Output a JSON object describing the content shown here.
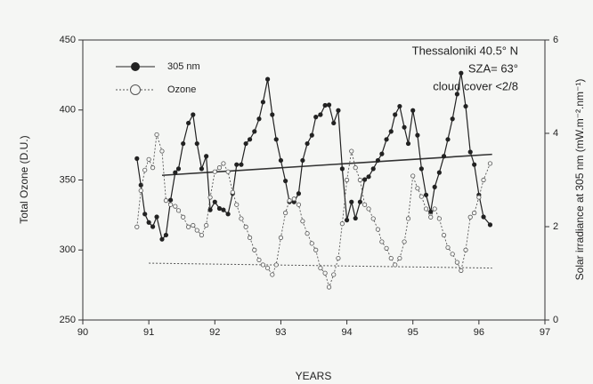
{
  "chart_data": {
    "type": "line",
    "annotations": [
      "Thessaloniki 40.5° N",
      "SZA= 63°",
      "cloud cover <2/8"
    ],
    "xlabel": "YEARS",
    "ylabel": "Total Ozone (D.U.)",
    "y2label": "Solar irradiance at 305 nm (mW.m⁻².nm⁻¹)",
    "xlim": [
      90,
      97
    ],
    "xticks": [
      90,
      91,
      92,
      93,
      94,
      95,
      96,
      97
    ],
    "ylim": [
      250,
      450
    ],
    "yticks": [
      250,
      300,
      350,
      400,
      450
    ],
    "y2lim": [
      0,
      6
    ],
    "y2ticks": [
      0,
      2,
      4,
      6
    ],
    "legend": "upper-left",
    "x": [
      90.82,
      90.88,
      90.94,
      91.0,
      91.06,
      91.12,
      91.2,
      91.26,
      91.33,
      91.4,
      91.45,
      91.52,
      91.6,
      91.67,
      91.73,
      91.8,
      91.87,
      91.93,
      92.0,
      92.07,
      92.13,
      92.2,
      92.27,
      92.33,
      92.4,
      92.47,
      92.53,
      92.6,
      92.67,
      92.73,
      92.8,
      92.87,
      92.93,
      93.0,
      93.07,
      93.13,
      93.2,
      93.27,
      93.33,
      93.4,
      93.47,
      93.53,
      93.6,
      93.67,
      93.73,
      93.8,
      93.87,
      93.93,
      94.0,
      94.07,
      94.13,
      94.2,
      94.27,
      94.33,
      94.4,
      94.47,
      94.53,
      94.6,
      94.67,
      94.73,
      94.8,
      94.87,
      94.93,
      95.0,
      95.07,
      95.13,
      95.2,
      95.27,
      95.33,
      95.4,
      95.47,
      95.53,
      95.6,
      95.67,
      95.73,
      95.8,
      95.87,
      95.93,
      96.0,
      96.07,
      96.17
    ],
    "series": [
      {
        "name": "305 nm",
        "color": "#222222",
        "axis": "y2",
        "marker": "filled",
        "dash": false,
        "values": [
          3.46,
          2.89,
          2.27,
          2.09,
          2.0,
          2.21,
          1.73,
          1.82,
          2.57,
          3.16,
          3.24,
          3.78,
          4.22,
          4.4,
          3.78,
          3.24,
          3.51,
          2.36,
          2.53,
          2.39,
          2.36,
          2.27,
          2.71,
          3.33,
          3.33,
          3.78,
          3.87,
          4.04,
          4.31,
          4.67,
          5.16,
          4.4,
          3.87,
          3.42,
          2.98,
          2.53,
          2.53,
          2.71,
          3.42,
          3.78,
          3.96,
          4.35,
          4.4,
          4.6,
          4.61,
          4.22,
          4.49,
          3.24,
          2.14,
          2.53,
          2.18,
          2.53,
          3.01,
          3.07,
          3.24,
          3.42,
          3.56,
          3.87,
          4.04,
          4.4,
          4.58,
          4.13,
          3.78,
          4.49,
          3.96,
          3.24,
          2.68,
          2.32,
          2.85,
          3.16,
          3.51,
          3.87,
          4.31,
          4.84,
          5.29,
          4.58,
          3.6,
          3.33,
          2.68,
          2.21,
          2.04
        ]
      },
      {
        "name": "Ozone",
        "color": "#555555",
        "axis": "y",
        "marker": "open",
        "dash": true,
        "values": [
          316.5,
          342.4,
          357.1,
          364.7,
          358.8,
          382.4,
          370.6,
          335.3,
          332.4,
          331.2,
          328.2,
          323.5,
          316.5,
          317.6,
          314.1,
          310.6,
          317.6,
          337.6,
          355.9,
          358.8,
          361.8,
          355.9,
          341.2,
          332.4,
          322.4,
          316.5,
          308.8,
          300,
          292.9,
          289.4,
          287.1,
          282.4,
          289.4,
          308.8,
          326.5,
          335.3,
          336.5,
          332.4,
          320.6,
          311.8,
          304.7,
          300,
          287.1,
          283.5,
          273.5,
          282.4,
          294.1,
          318.8,
          350,
          370.6,
          358.8,
          350,
          332.4,
          329.4,
          322.4,
          314.7,
          305.9,
          301.2,
          294.1,
          289.4,
          294.1,
          305.9,
          322.4,
          352.9,
          344.1,
          338.2,
          329.4,
          323.5,
          329.4,
          322.4,
          310.6,
          301.8,
          297.1,
          291.2,
          285.3,
          300,
          323.5,
          326.5,
          337.6,
          350,
          361.8
        ]
      }
    ],
    "trend_lines": [
      {
        "axis": "y2",
        "color": "#333333",
        "dash": false,
        "x": [
          91.2,
          96.2
        ],
        "values": [
          3.1,
          3.55
        ]
      },
      {
        "axis": "y",
        "color": "#555555",
        "dash": true,
        "x": [
          91.0,
          96.2
        ],
        "values": [
          290.6,
          287.1
        ]
      }
    ]
  }
}
